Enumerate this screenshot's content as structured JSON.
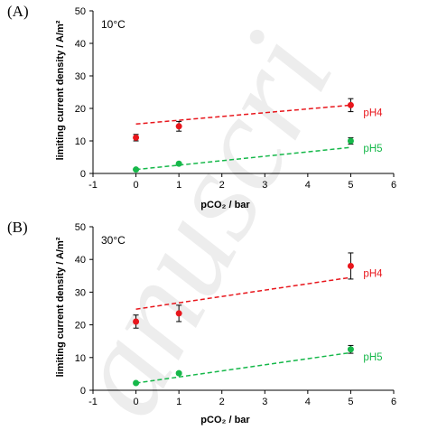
{
  "chart_data": [
    {
      "type": "scatter",
      "panel_label": "(A)",
      "annotation": "10°C",
      "xlabel": "pCO₂ / bar",
      "ylabel": "limiting current density / A/m²",
      "xlim": [
        -1,
        6
      ],
      "ylim": [
        0,
        50
      ],
      "x_ticks": [
        -1,
        0,
        1,
        2,
        3,
        4,
        5,
        6
      ],
      "y_ticks": [
        0,
        10,
        20,
        30,
        40,
        50
      ],
      "grid": false,
      "series": [
        {
          "name": "pH4",
          "color": "#e8161c",
          "x": [
            0,
            1,
            5
          ],
          "y": [
            11,
            14.5,
            21
          ],
          "yerr": [
            1,
            1.5,
            2
          ],
          "trend_y_at_x0": 15.2,
          "trend_y_at_x5": 21
        },
        {
          "name": "pH5",
          "color": "#16b84a",
          "x": [
            0,
            1,
            5
          ],
          "y": [
            1.2,
            3,
            10
          ],
          "yerr": [
            0.3,
            0.3,
            1
          ],
          "trend_y_at_x0": 1.2,
          "trend_y_at_x5": 8
        }
      ]
    },
    {
      "type": "scatter",
      "panel_label": "(B)",
      "annotation": "30°C",
      "xlabel": "pCO₂ / bar",
      "ylabel": "limiting current density / A/m²",
      "xlim": [
        -1,
        6
      ],
      "ylim": [
        0,
        50
      ],
      "x_ticks": [
        -1,
        0,
        1,
        2,
        3,
        4,
        5,
        6
      ],
      "y_ticks": [
        0,
        10,
        20,
        30,
        40,
        50
      ],
      "grid": false,
      "series": [
        {
          "name": "pH4",
          "color": "#e8161c",
          "x": [
            0,
            1,
            5
          ],
          "y": [
            21,
            23.5,
            38
          ],
          "yerr": [
            2,
            2.5,
            4
          ],
          "trend_y_at_x0": 24.8,
          "trend_y_at_x5": 34.5
        },
        {
          "name": "pH5",
          "color": "#16b84a",
          "x": [
            0,
            1,
            5
          ],
          "y": [
            2.2,
            5.2,
            12.5
          ],
          "yerr": [
            0.3,
            0.4,
            1.2
          ],
          "trend_y_at_x0": 2.2,
          "trend_y_at_x5": 11.5
        }
      ]
    }
  ],
  "watermark": "anuscri"
}
